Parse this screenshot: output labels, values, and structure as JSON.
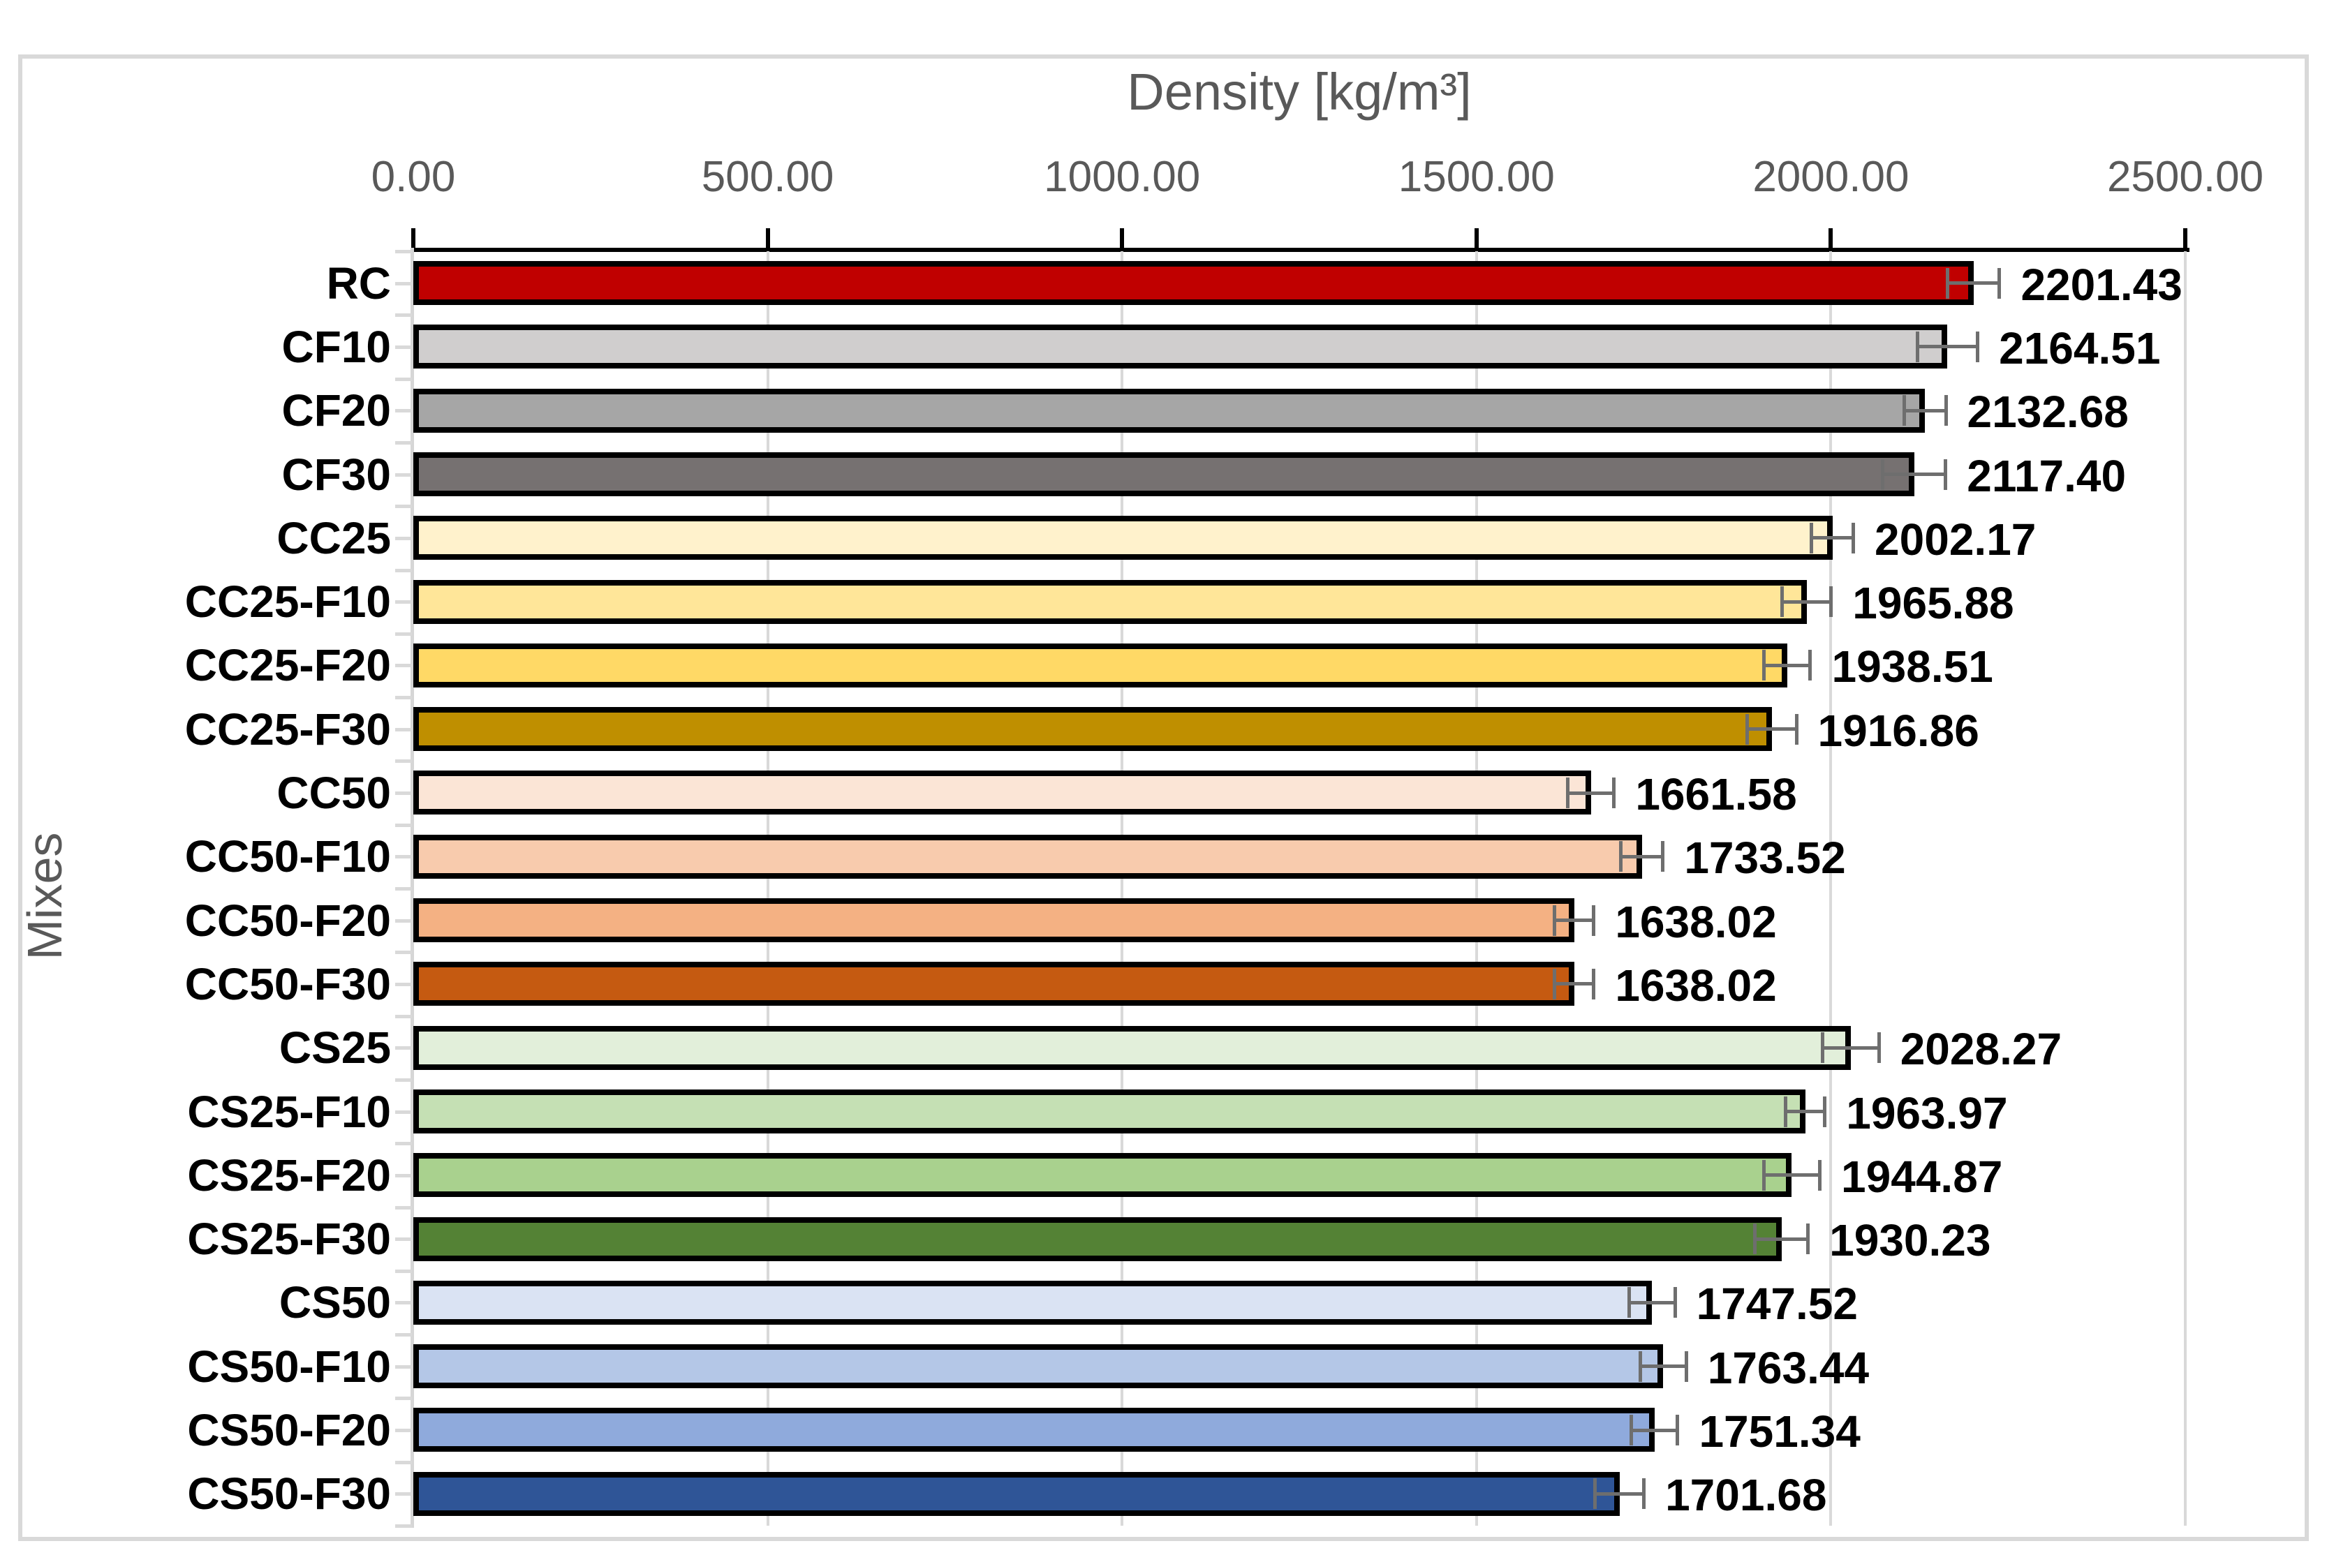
{
  "chart_data": {
    "type": "bar",
    "orientation": "horizontal",
    "title": "Density [kg/m³]",
    "xlabel": "Density [kg/m³]",
    "ylabel": "Mixes",
    "xlim": [
      0,
      2500
    ],
    "grid": true,
    "x_tick_values": [
      0,
      500,
      1000,
      1500,
      2000,
      2500
    ],
    "x_tick_labels": [
      "0.00",
      "500.00",
      "1000.00",
      "1500.00",
      "2000.00",
      "2500.00"
    ],
    "categories": [
      "RC",
      "CF10",
      "CF20",
      "CF30",
      "CC25",
      "CC25-F10",
      "CC25-F20",
      "CC25-F30",
      "CC50",
      "CC50-F10",
      "CC50-F20",
      "CC50-F30",
      "CS25",
      "CS25-F10",
      "CS25-F20",
      "CS25-F30",
      "CS50",
      "CS50-F10",
      "CS50-F20",
      "CS50-F30"
    ],
    "values": [
      2201.43,
      2164.51,
      2132.68,
      2117.4,
      2002.17,
      1965.88,
      1938.51,
      1916.86,
      1661.58,
      1733.52,
      1638.02,
      1638.02,
      2028.27,
      1963.97,
      1944.87,
      1930.23,
      1747.52,
      1763.44,
      1751.34,
      1701.68
    ],
    "value_labels": [
      "2201.43",
      "2164.51",
      "2132.68",
      "2117.40",
      "2002.17",
      "1965.88",
      "1938.51",
      "1916.86",
      "1661.58",
      "1733.52",
      "1638.02",
      "1638.02",
      "2028.27",
      "1963.97",
      "1944.87",
      "1930.23",
      "1747.52",
      "1763.44",
      "1751.34",
      "1701.68"
    ],
    "error_values": [
      37,
      43,
      30,
      45,
      30,
      35,
      33,
      35,
      33,
      30,
      28,
      28,
      40,
      28,
      40,
      38,
      33,
      33,
      33,
      35
    ],
    "bar_colors": [
      "#c00000",
      "#d0cece",
      "#a6a6a6",
      "#767171",
      "#fff2cc",
      "#ffe699",
      "#ffd966",
      "#bf8f00",
      "#fbe5d6",
      "#f8cbad",
      "#f4b183",
      "#c55a11",
      "#e2efda",
      "#c5e0b4",
      "#a9d18e",
      "#548235",
      "#dae3f3",
      "#b4c7e7",
      "#8faadc",
      "#2f5597"
    ],
    "bar_border_color": "#000000",
    "error_bar_color": "#6e6e6e",
    "gridline_color": "#d9d9d9",
    "axis_line_color": "#000000",
    "text_color_axis": "#595959",
    "legend": "none"
  }
}
